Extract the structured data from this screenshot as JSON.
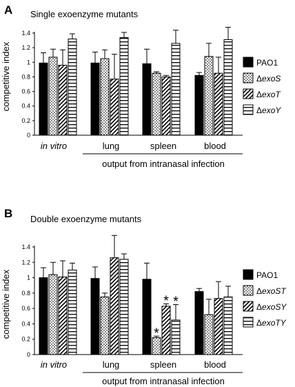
{
  "colors": {
    "solid": "#000000",
    "background": "#ffffff"
  },
  "chart_data": [
    {
      "type": "bar",
      "panel_letter": "A",
      "title": "Single exoenzyme mutants",
      "ylabel": "competitive index",
      "xlabel": "output from intranasal infection",
      "ylim": [
        0,
        1.4
      ],
      "yticks": [
        "0",
        "0.2",
        "0.4",
        "0.6",
        "0.8",
        "1",
        "1.2",
        "1.4"
      ],
      "categories": [
        "in vitro",
        "lung",
        "spleen",
        "blood"
      ],
      "series": [
        {
          "name": "PAO1",
          "pattern": "solid",
          "values": [
            0.99,
            0.99,
            0.98,
            0.82
          ],
          "errors": [
            0.14,
            0.15,
            0.2,
            0.04
          ]
        },
        {
          "name": "ΔexoS",
          "pattern": "dots",
          "values": [
            1.07,
            1.05,
            0.85,
            1.08
          ],
          "errors": [
            0.11,
            0.12,
            0.02,
            0.18
          ]
        },
        {
          "name": "ΔexoT",
          "pattern": "diag",
          "values": [
            0.96,
            0.77,
            0.8,
            0.85
          ],
          "errors": [
            0.21,
            0.34,
            0.02,
            0.22
          ]
        },
        {
          "name": "ΔexoY",
          "pattern": "hstripe",
          "values": [
            1.32,
            1.34,
            1.26,
            1.31
          ],
          "errors": [
            0.07,
            0.07,
            0.18,
            0.17
          ]
        }
      ],
      "legend": [
        {
          "text": "PAO1",
          "italic": ""
        },
        {
          "text": "Δ",
          "italic": "exoS"
        },
        {
          "text": "Δ",
          "italic": "exoT"
        },
        {
          "text": "Δ",
          "italic": "exoY"
        }
      ],
      "annotations": [],
      "legend_position": "right"
    },
    {
      "type": "bar",
      "panel_letter": "B",
      "title": "Double exoenzyme mutants",
      "ylabel": "competitive index",
      "xlabel": "output from intranasal infection",
      "ylim": [
        0,
        1.4
      ],
      "yticks": [
        "0",
        "0.2",
        "0.4",
        "0.6",
        "0.8",
        "1",
        "1.2",
        "1.4"
      ],
      "categories": [
        "in vitro",
        "lung",
        "spleen",
        "blood"
      ],
      "series": [
        {
          "name": "PAO1",
          "pattern": "solid",
          "values": [
            1.0,
            0.99,
            0.98,
            0.82
          ],
          "errors": [
            0.13,
            0.15,
            0.21,
            0.04
          ]
        },
        {
          "name": "ΔexoST",
          "pattern": "dots",
          "values": [
            1.04,
            0.75,
            0.22,
            0.52
          ],
          "errors": [
            0.16,
            0.05,
            0.02,
            0.2
          ]
        },
        {
          "name": "ΔexoSY",
          "pattern": "diag",
          "values": [
            1.01,
            1.26,
            0.63,
            0.73
          ],
          "errors": [
            0.21,
            0.29,
            0.03,
            0.22
          ]
        },
        {
          "name": "ΔexoTY",
          "pattern": "hstripe",
          "values": [
            1.1,
            1.24,
            0.45,
            0.75
          ],
          "errors": [
            0.09,
            0.07,
            0.2,
            0.14
          ]
        }
      ],
      "legend": [
        {
          "text": "PAO1",
          "italic": ""
        },
        {
          "text": "Δ",
          "italic": "exoST"
        },
        {
          "text": "Δ",
          "italic": "exoSY"
        },
        {
          "text": "Δ",
          "italic": "exoTY"
        }
      ],
      "annotations": [
        {
          "text": "*",
          "category": "spleen",
          "series": 1
        },
        {
          "text": "*",
          "category": "spleen",
          "series": 2
        },
        {
          "text": "*",
          "category": "spleen",
          "series": 3
        }
      ],
      "legend_position": "right"
    }
  ]
}
